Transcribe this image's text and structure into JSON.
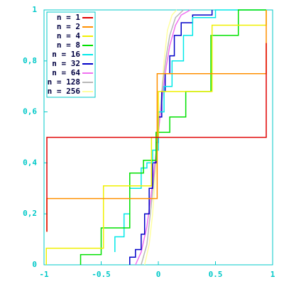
{
  "chart_data": {
    "type": "line",
    "xlim": [
      -1,
      1
    ],
    "ylim": [
      0,
      1
    ],
    "xticks": [
      -1,
      -0.5,
      0,
      0.5,
      1
    ],
    "yticks": [
      0,
      {
        "value": 0.2,
        "label": "0,2"
      },
      {
        "value": 0.4,
        "label": "0,4"
      },
      {
        "value": 0.6,
        "label": "0,6"
      },
      {
        "value": 0.8,
        "label": "0,8"
      },
      1
    ],
    "legend": "upper left",
    "axis_color": "#00c8c8",
    "series": [
      {
        "name": "n = 1",
        "color": "#e00000",
        "x": [
          -0.975,
          -0.975,
          0.944,
          0.944
        ],
        "values": [
          0.13,
          0.5,
          0.5,
          0.87
        ]
      },
      {
        "name": "n = 2",
        "color": "#ff9000",
        "x": [
          -0.975,
          -0.975,
          -0.01,
          -0.01,
          0.944,
          0.944
        ],
        "values": [
          0.13,
          0.26,
          0.26,
          0.75,
          0.75,
          1
        ]
      },
      {
        "name": "n = 4",
        "color": "#f0f000",
        "x": [
          -0.98,
          -0.98,
          -0.48,
          -0.48,
          -0.06,
          -0.06,
          0,
          0,
          0.47,
          0.47,
          0.944,
          0.944
        ],
        "values": [
          0,
          0.065,
          0.065,
          0.31,
          0.31,
          0.5,
          0.5,
          0.68,
          0.68,
          0.94,
          0.94,
          1
        ]
      },
      {
        "name": "n = 8",
        "color": "#00e000",
        "x": [
          -0.68,
          -0.68,
          -0.5,
          -0.5,
          -0.25,
          -0.25,
          -0.13,
          -0.13,
          -0.02,
          -0.02,
          0.1,
          0.1,
          0.24,
          0.24,
          0.46,
          0.46,
          0.7,
          0.7,
          0.944
        ],
        "values": [
          0,
          0.04,
          0.04,
          0.145,
          0.145,
          0.36,
          0.36,
          0.41,
          0.41,
          0.52,
          0.52,
          0.58,
          0.58,
          0.68,
          0.68,
          0.9,
          0.9,
          1,
          1
        ]
      },
      {
        "name": "n = 16",
        "color": "#00e8e8",
        "x": [
          -0.38,
          -0.38,
          -0.3,
          -0.3,
          -0.25,
          -0.25,
          -0.15,
          -0.15,
          -0.1,
          -0.1,
          -0.05,
          -0.05,
          0,
          0,
          0.05,
          0.05,
          0.12,
          0.12,
          0.22,
          0.22,
          0.3,
          0.3,
          0.5,
          0.5,
          0.944
        ],
        "values": [
          0.05,
          0.11,
          0.11,
          0.2,
          0.2,
          0.3,
          0.3,
          0.38,
          0.38,
          0.4,
          0.4,
          0.45,
          0.45,
          0.6,
          0.6,
          0.7,
          0.7,
          0.8,
          0.8,
          0.9,
          0.9,
          0.97,
          0.97,
          1,
          1
        ]
      },
      {
        "name": "n = 32",
        "color": "#0000c8",
        "x": [
          -0.25,
          -0.25,
          -0.2,
          -0.2,
          -0.15,
          -0.15,
          -0.12,
          -0.12,
          -0.08,
          -0.08,
          -0.05,
          -0.05,
          -0.02,
          -0.02,
          0,
          0,
          0.03,
          0.03,
          0.06,
          0.06,
          0.1,
          0.1,
          0.14,
          0.14,
          0.2,
          0.2,
          0.3,
          0.3,
          0.47,
          0.47
        ],
        "values": [
          0,
          0.03,
          0.03,
          0.06,
          0.06,
          0.12,
          0.12,
          0.2,
          0.2,
          0.3,
          0.3,
          0.4,
          0.4,
          0.48,
          0.48,
          0.58,
          0.58,
          0.68,
          0.68,
          0.75,
          0.75,
          0.82,
          0.82,
          0.9,
          0.9,
          0.95,
          0.95,
          0.98,
          0.98,
          1
        ]
      },
      {
        "name": "n = 64",
        "color": "#f070f0",
        "x": [
          -0.2,
          -0.15,
          -0.1,
          -0.07,
          -0.04,
          -0.02,
          0,
          0.02,
          0.04,
          0.07,
          0.1,
          0.15,
          0.2,
          0.28
        ],
        "values": [
          0,
          0.05,
          0.15,
          0.25,
          0.36,
          0.44,
          0.52,
          0.6,
          0.68,
          0.78,
          0.86,
          0.94,
          0.98,
          1
        ]
      },
      {
        "name": "n = 128",
        "color": "#b8b8b8",
        "x": [
          -0.15,
          -0.1,
          -0.07,
          -0.04,
          -0.02,
          0,
          0.02,
          0.04,
          0.07,
          0.1,
          0.15,
          0.22
        ],
        "values": [
          0,
          0.08,
          0.2,
          0.33,
          0.43,
          0.52,
          0.62,
          0.72,
          0.82,
          0.9,
          0.97,
          1
        ]
      },
      {
        "name": "n = 256",
        "color": "#ffffa0",
        "x": [
          -0.12,
          -0.08,
          -0.05,
          -0.03,
          -0.01,
          0.01,
          0.03,
          0.05,
          0.08,
          0.12,
          0.16
        ],
        "values": [
          0,
          0.08,
          0.2,
          0.32,
          0.44,
          0.56,
          0.68,
          0.8,
          0.92,
          0.98,
          1
        ]
      }
    ]
  }
}
